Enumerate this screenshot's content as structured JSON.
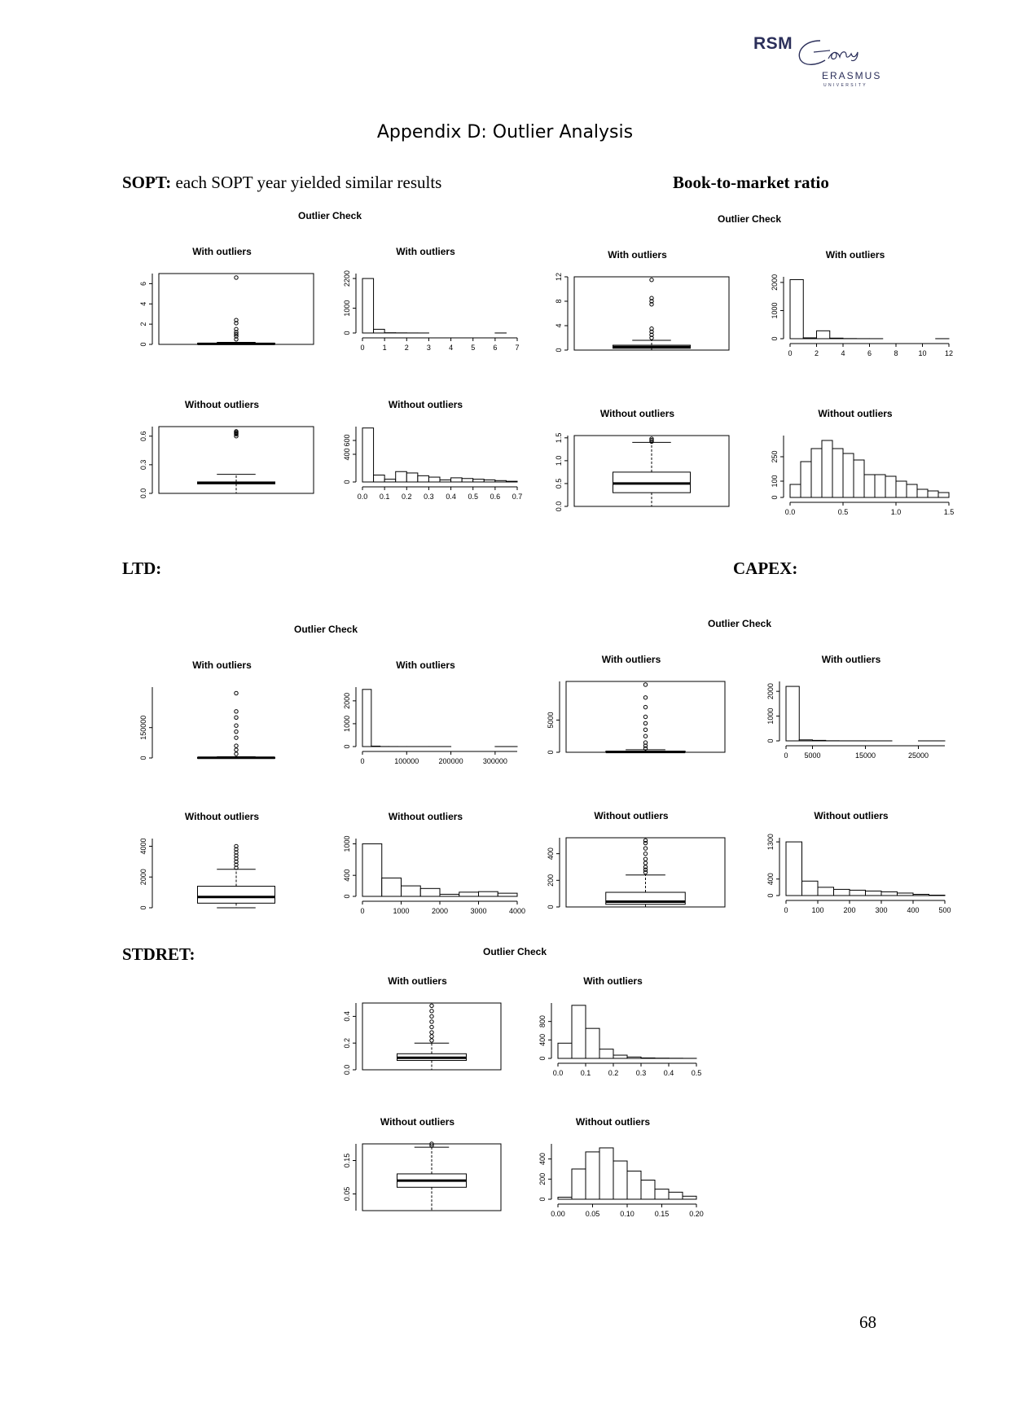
{
  "logo": {
    "rsm": "RSM",
    "erasmus": "ERASMUS",
    "university": "UNIVERSITY"
  },
  "page_title": "Appendix D: Outlier Analysis",
  "headings": {
    "sopt_bold": "SOPT:",
    "sopt_rest": " each SOPT year yielded similar results",
    "btm": "Book-to-market ratio",
    "ltd": "LTD:",
    "capex": "CAPEX:",
    "stdret": "STDRET:"
  },
  "page_number": "68",
  "figures": [
    {
      "title": "Outlier Check"
    },
    {
      "title": "Outlier Check"
    },
    {
      "title": "Outlier Check"
    },
    {
      "title": "Outlier Check"
    },
    {
      "title": "Outlier Check"
    }
  ],
  "chart_data": [
    {
      "figure": "SOPT",
      "type": "box",
      "title": "With outliers",
      "ylim": [
        0,
        7
      ],
      "yticks": [
        "0",
        "2",
        "4",
        "6"
      ],
      "box": {
        "lower_whisker": 0,
        "q1": 0.02,
        "median": 0.05,
        "q3": 0.1,
        "upper_whisker": 0.2,
        "outliers": [
          0.5,
          0.8,
          1.0,
          1.2,
          1.5,
          2.1,
          2.4,
          6.6
        ]
      }
    },
    {
      "figure": "SOPT",
      "type": "histogram",
      "title": "With outliers",
      "xlim": [
        0,
        7
      ],
      "ylim": [
        0,
        2400
      ],
      "xticks": [
        "0",
        "1",
        "2",
        "3",
        "4",
        "5",
        "6",
        "7"
      ],
      "yticks": [
        "0",
        "1000",
        "2200"
      ],
      "bins": [
        0,
        0.5,
        1,
        1.5,
        2,
        2.5,
        3,
        3.5,
        4,
        4.5,
        5,
        5.5,
        6,
        6.5,
        7
      ],
      "counts": [
        2200,
        150,
        10,
        5,
        2,
        1,
        0,
        0,
        0,
        0,
        0,
        0,
        1,
        0
      ]
    },
    {
      "figure": "SOPT",
      "type": "box",
      "title": "Without outliers",
      "ylim": [
        0,
        0.7
      ],
      "yticks": [
        "0.0",
        "0.3",
        "0.6"
      ],
      "box": {
        "lower_whisker": 0,
        "q1": 0.1,
        "median": 0.11,
        "q3": 0.12,
        "upper_whisker": 0.2,
        "outliers": [
          0.6,
          0.62,
          0.63,
          0.64,
          0.65
        ]
      }
    },
    {
      "figure": "SOPT",
      "type": "histogram",
      "title": "Without outliers",
      "xlim": [
        0,
        0.7
      ],
      "ylim": [
        0,
        800
      ],
      "xticks": [
        "0.0",
        "0.1",
        "0.2",
        "0.3",
        "0.4",
        "0.5",
        "0.6",
        "0.7"
      ],
      "yticks": [
        "0",
        "400",
        "600"
      ],
      "bins": [
        0,
        0.05,
        0.1,
        0.15,
        0.2,
        0.25,
        0.3,
        0.35,
        0.4,
        0.45,
        0.5,
        0.55,
        0.6,
        0.65,
        0.7
      ],
      "counts": [
        780,
        100,
        40,
        150,
        130,
        90,
        70,
        30,
        60,
        50,
        40,
        30,
        20,
        10
      ]
    },
    {
      "figure": "Book-to-market ratio",
      "type": "box",
      "title": "With outliers",
      "ylim": [
        0,
        12
      ],
      "yticks": [
        "0",
        "4",
        "8",
        "12"
      ],
      "box": {
        "lower_whisker": 0,
        "q1": 0.3,
        "median": 0.5,
        "q3": 0.8,
        "upper_whisker": 1.6,
        "outliers": [
          2,
          2.5,
          3,
          3.5,
          7.5,
          8,
          8.5,
          11.5
        ]
      }
    },
    {
      "figure": "Book-to-market ratio",
      "type": "histogram",
      "title": "With outliers",
      "xlim": [
        0,
        12
      ],
      "ylim": [
        0,
        2200
      ],
      "xticks": [
        "0",
        "2",
        "4",
        "6",
        "8",
        "10",
        "12"
      ],
      "yticks": [
        "0",
        "1000",
        "2000"
      ],
      "bins": [
        0,
        1,
        2,
        3,
        4,
        5,
        6,
        7,
        8,
        9,
        10,
        11,
        12
      ],
      "counts": [
        2100,
        30,
        280,
        20,
        5,
        2,
        1,
        0,
        0,
        0,
        0,
        1
      ]
    },
    {
      "figure": "Book-to-market ratio",
      "type": "box",
      "title": "Without outliers",
      "ylim": [
        0,
        1.55
      ],
      "yticks": [
        "0.0",
        "0.5",
        "1.0",
        "1.5"
      ],
      "box": {
        "lower_whisker": 0,
        "q1": 0.3,
        "median": 0.5,
        "q3": 0.75,
        "upper_whisker": 1.4,
        "outliers": [
          1.42,
          1.45,
          1.48
        ]
      }
    },
    {
      "figure": "Book-to-market ratio",
      "type": "histogram",
      "title": "Without outliers",
      "xlim": [
        0,
        1.5
      ],
      "ylim": [
        0,
        380
      ],
      "xticks": [
        "0.0",
        "0.5",
        "1.0",
        "1.5"
      ],
      "yticks": [
        "0",
        "100",
        "250"
      ],
      "bins": [
        0,
        0.1,
        0.2,
        0.3,
        0.4,
        0.5,
        0.6,
        0.7,
        0.8,
        0.9,
        1.0,
        1.1,
        1.2,
        1.3,
        1.4,
        1.5
      ],
      "counts": [
        80,
        220,
        300,
        350,
        300,
        270,
        230,
        140,
        140,
        130,
        100,
        80,
        50,
        40,
        30
      ]
    },
    {
      "figure": "LTD",
      "type": "box",
      "title": "With outliers",
      "ylim": [
        0,
        350000
      ],
      "yticks": [
        "0",
        "150000"
      ],
      "box": {
        "lower_whisker": 0,
        "q1": 0,
        "median": 1000,
        "q3": 2500,
        "upper_whisker": 6000,
        "outliers": [
          20000,
          40000,
          60000,
          100000,
          130000,
          160000,
          200000,
          230000,
          320000
        ]
      }
    },
    {
      "figure": "LTD",
      "type": "histogram",
      "title": "With outliers",
      "xlim": [
        0,
        350000
      ],
      "ylim": [
        0,
        2600
      ],
      "xticks": [
        "0",
        "100000",
        "200000",
        "300000"
      ],
      "yticks": [
        "0",
        "1000",
        "2000"
      ],
      "bins": [
        0,
        20000,
        40000,
        60000,
        80000,
        100000,
        150000,
        200000,
        250000,
        300000,
        350000
      ],
      "counts": [
        2500,
        20,
        3,
        2,
        1,
        1,
        1,
        0,
        0,
        1
      ]
    },
    {
      "figure": "LTD",
      "type": "box",
      "title": "Without outliers",
      "ylim": [
        0,
        4500
      ],
      "yticks": [
        "0",
        "2000",
        "4000"
      ],
      "box": {
        "lower_whisker": 0,
        "q1": 300,
        "median": 700,
        "q3": 1400,
        "upper_whisker": 2500,
        "outliers": [
          2600,
          2800,
          3000,
          3200,
          3400,
          3600,
          3800,
          4000
        ]
      }
    },
    {
      "figure": "LTD",
      "type": "histogram",
      "title": "Without outliers",
      "xlim": [
        0,
        4000
      ],
      "ylim": [
        0,
        1100
      ],
      "xticks": [
        "0",
        "1000",
        "2000",
        "3000",
        "4000"
      ],
      "yticks": [
        "0",
        "400",
        "1000"
      ],
      "bins": [
        0,
        500,
        1000,
        1500,
        2000,
        2500,
        3000,
        3500,
        4000
      ],
      "counts": [
        1000,
        350,
        200,
        150,
        40,
        80,
        90,
        60
      ]
    },
    {
      "figure": "CAPEX",
      "type": "box",
      "title": "With outliers",
      "ylim": [
        0,
        11000
      ],
      "yticks": [
        "0",
        "5000"
      ],
      "box": {
        "lower_whisker": 0,
        "q1": 0,
        "median": 50,
        "q3": 150,
        "upper_whisker": 400,
        "outliers": [
          600,
          1000,
          1500,
          2500,
          3500,
          4500,
          5500,
          7000,
          8500,
          10500
        ]
      }
    },
    {
      "figure": "CAPEX",
      "type": "histogram",
      "title": "With outliers",
      "xlim": [
        0,
        30000
      ],
      "ylim": [
        0,
        2400
      ],
      "xticks": [
        "0",
        "5000",
        "15000",
        "25000"
      ],
      "yticks": [
        "0",
        "1000",
        "2000"
      ],
      "bins": [
        0,
        2500,
        5000,
        7500,
        10000,
        15000,
        20000,
        25000,
        30000
      ],
      "counts": [
        2200,
        40,
        20,
        5,
        2,
        1,
        0,
        1
      ]
    },
    {
      "figure": "CAPEX",
      "type": "box",
      "title": "Without outliers",
      "ylim": [
        0,
        520
      ],
      "yticks": [
        "0",
        "200",
        "400"
      ],
      "box": {
        "lower_whisker": 0,
        "q1": 20,
        "median": 40,
        "q3": 110,
        "upper_whisker": 240,
        "outliers": [
          260,
          280,
          300,
          330,
          360,
          400,
          440,
          480,
          500
        ]
      }
    },
    {
      "figure": "CAPEX",
      "type": "histogram",
      "title": "Without outliers",
      "xlim": [
        0,
        500
      ],
      "ylim": [
        0,
        1400
      ],
      "xticks": [
        "0",
        "100",
        "200",
        "300",
        "400",
        "500"
      ],
      "yticks": [
        "0",
        "400",
        "1300"
      ],
      "bins": [
        0,
        50,
        100,
        150,
        200,
        250,
        300,
        350,
        400,
        450,
        500
      ],
      "counts": [
        1300,
        350,
        200,
        150,
        130,
        110,
        90,
        60,
        30,
        10
      ]
    },
    {
      "figure": "STDRET",
      "type": "box",
      "title": "With outliers",
      "ylim": [
        0,
        0.5
      ],
      "yticks": [
        "0.0",
        "0.2",
        "0.4"
      ],
      "box": {
        "lower_whisker": 0,
        "q1": 0.07,
        "median": 0.09,
        "q3": 0.12,
        "upper_whisker": 0.2,
        "outliers": [
          0.22,
          0.25,
          0.28,
          0.32,
          0.36,
          0.4,
          0.44,
          0.48
        ]
      }
    },
    {
      "figure": "STDRET",
      "type": "histogram",
      "title": "With outliers",
      "xlim": [
        0,
        0.5
      ],
      "ylim": [
        0,
        1200
      ],
      "xticks": [
        "0.0",
        "0.1",
        "0.2",
        "0.3",
        "0.4",
        "0.5"
      ],
      "yticks": [
        "0",
        "400",
        "800"
      ],
      "bins": [
        0,
        0.05,
        0.1,
        0.15,
        0.2,
        0.25,
        0.3,
        0.35,
        0.4,
        0.45,
        0.5
      ],
      "counts": [
        330,
        1150,
        650,
        200,
        70,
        30,
        10,
        5,
        3,
        1
      ]
    },
    {
      "figure": "STDRET",
      "type": "box",
      "title": "Without outliers",
      "ylim": [
        0,
        0.2
      ],
      "yticks": [
        "0.05",
        "0.15"
      ],
      "box": {
        "lower_whisker": 0,
        "q1": 0.07,
        "median": 0.09,
        "q3": 0.11,
        "upper_whisker": 0.19,
        "outliers": [
          0.195,
          0.2
        ]
      }
    },
    {
      "figure": "STDRET",
      "type": "histogram",
      "title": "Without outliers",
      "xlim": [
        0,
        0.2
      ],
      "ylim": [
        0,
        550
      ],
      "xticks": [
        "0.00",
        "0.05",
        "0.10",
        "0.15",
        "0.20"
      ],
      "yticks": [
        "0",
        "200",
        "400"
      ],
      "bins": [
        0,
        0.02,
        0.04,
        0.06,
        0.08,
        0.1,
        0.12,
        0.14,
        0.16,
        0.18,
        0.2
      ],
      "counts": [
        20,
        300,
        470,
        510,
        380,
        280,
        190,
        100,
        70,
        30
      ]
    }
  ]
}
